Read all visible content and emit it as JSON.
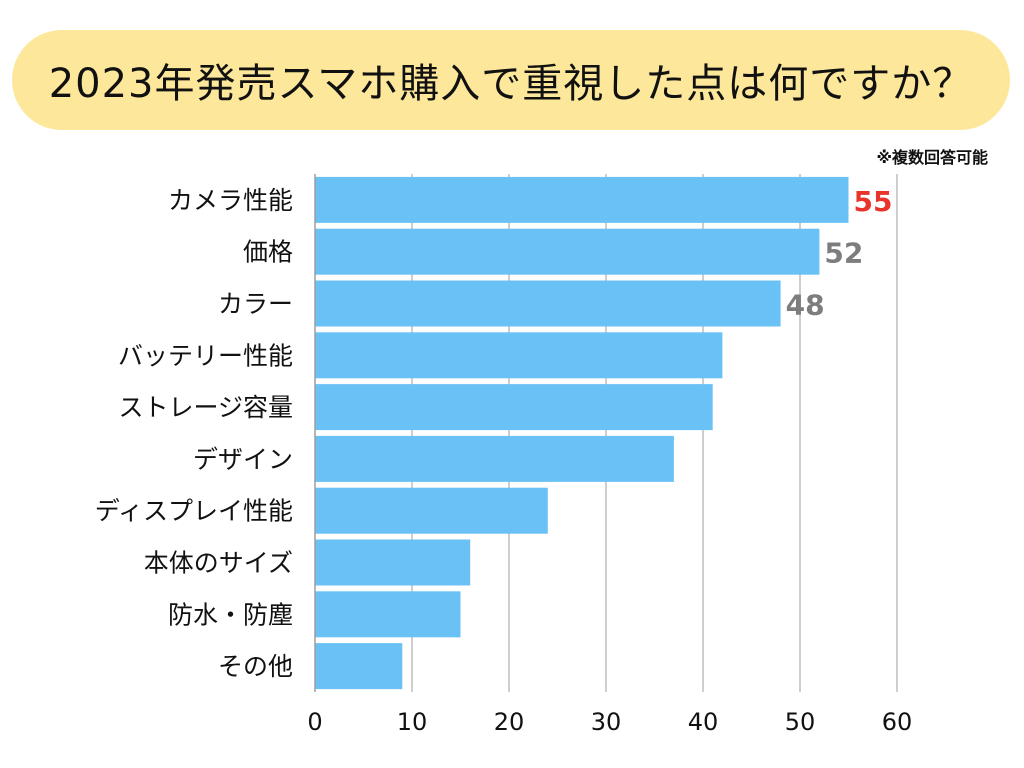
{
  "note": "※複数回答可能",
  "colors": {
    "bar": "#6ac1f5",
    "grid": "#bdbdbd",
    "axis": "#9e9e9e",
    "highlight_label": "#e8342a",
    "label": "#7d7d7d",
    "banner": "#fde79a"
  },
  "chart_data": {
    "type": "bar",
    "orientation": "horizontal",
    "title": "2023年発売スマホ購入で重視した点は何ですか？",
    "xlabel": "",
    "ylabel": "",
    "categories": [
      "カメラ性能",
      "価格",
      "カラー",
      "バッテリー性能",
      "ストレージ容量",
      "デザイン",
      "ディスプレイ性能",
      "本体のサイズ",
      "防水・防塵",
      "その他"
    ],
    "values": [
      55,
      52,
      48,
      42,
      41,
      37,
      24,
      16,
      15,
      9
    ],
    "data_labels": [
      "55",
      "52",
      "48",
      null,
      null,
      null,
      null,
      null,
      null,
      null
    ],
    "xlim": [
      0,
      60
    ],
    "xticks": [
      0,
      10,
      20,
      30,
      40,
      50,
      60
    ],
    "grid": "vertical"
  }
}
